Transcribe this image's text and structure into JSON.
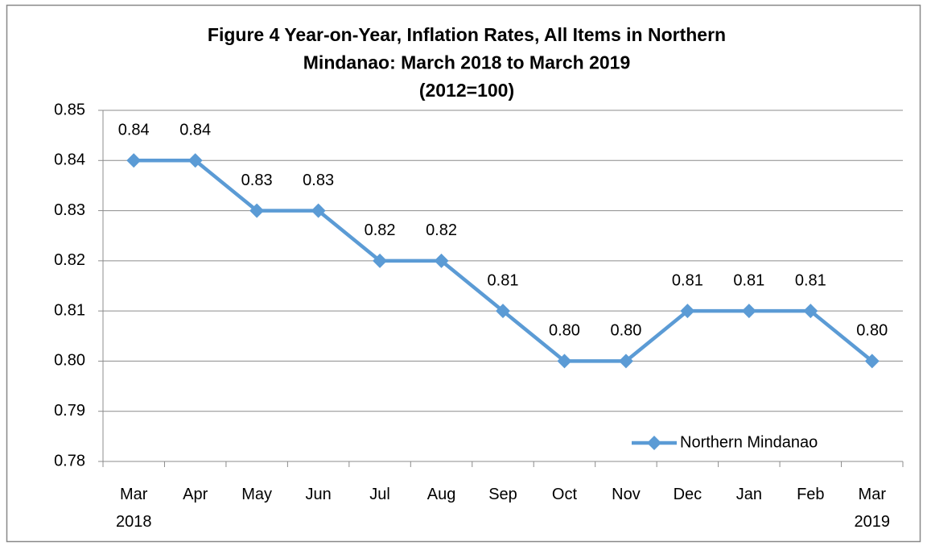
{
  "chart_data": {
    "type": "line",
    "title": [
      "Figure 4 Year-on-Year, Inflation Rates, All Items in Northern",
      "Mindanao: March 2018 to March 2019",
      "(2012=100)"
    ],
    "categories": [
      "Mar 2018",
      "Apr",
      "May",
      "Jun",
      "Jul",
      "Aug",
      "Sep",
      "Oct",
      "Nov",
      "Dec",
      "Jan",
      "Feb",
      "Mar 2019"
    ],
    "series": [
      {
        "name": "Northern Mindanao",
        "color": "#5b9bd5",
        "values": [
          0.84,
          0.84,
          0.83,
          0.83,
          0.82,
          0.82,
          0.81,
          0.8,
          0.8,
          0.81,
          0.81,
          0.81,
          0.8
        ],
        "value_labels": [
          "0.84",
          "0.84",
          "0.83",
          "0.83",
          "0.82",
          "0.82",
          "0.81",
          "0.80",
          "0.80",
          "0.81",
          "0.81",
          "0.81",
          "0.80"
        ]
      }
    ],
    "ylim": [
      0.78,
      0.85
    ],
    "yticks": [
      0.78,
      0.79,
      {
        "value": 0.8,
        "label": "0.80"
      },
      0.81,
      0.82,
      0.83,
      0.84,
      0.85
    ],
    "grid": true,
    "legend": "lower right"
  }
}
